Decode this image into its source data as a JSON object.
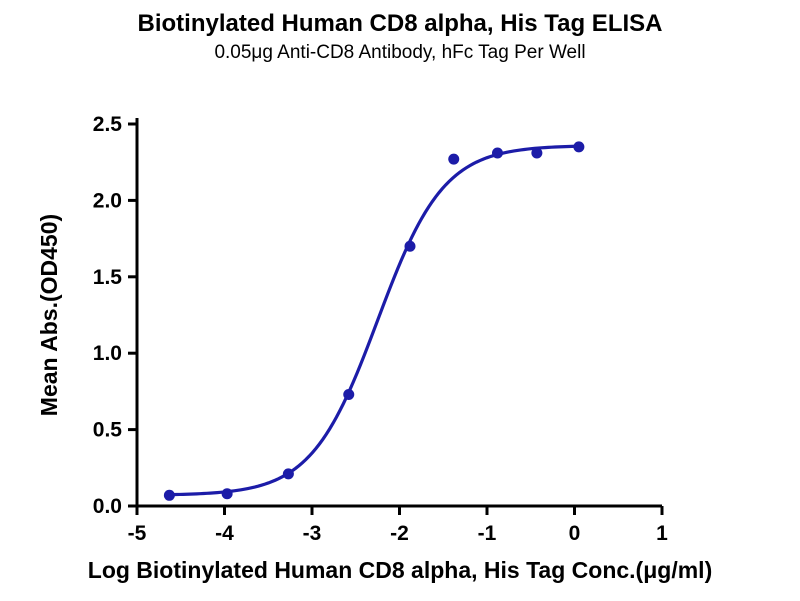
{
  "header": {
    "title": "Biotinylated Human CD8 alpha, His Tag ELISA",
    "subtitle": "0.05μg Anti-CD8 Antibody, hFc Tag Per Well"
  },
  "chart_data": {
    "type": "scatter",
    "title": "Biotinylated Human CD8 alpha, His Tag ELISA",
    "subtitle": "0.05μg Anti-CD8 Antibody, hFc Tag Per Well",
    "xlabel": "Log Biotinylated Human CD8 alpha, His Tag Conc.(μg/ml)",
    "ylabel": "Mean Abs.(OD450)",
    "xlim": [
      -5,
      1
    ],
    "ylim": [
      0,
      2.5
    ],
    "x_ticks": [
      -5,
      -4,
      -3,
      -2,
      -1,
      0,
      1
    ],
    "x_tick_labels": [
      "-5",
      "-4",
      "-3",
      "-2",
      "-1",
      "0",
      "1"
    ],
    "y_ticks": [
      0,
      0.5,
      1.0,
      1.5,
      2.0,
      2.5
    ],
    "y_tick_labels": [
      "0.0",
      "0.5",
      "1.0",
      "1.5",
      "2.0",
      "2.5"
    ],
    "grid": false,
    "legend": "none",
    "accent_color": "#1c1ca8",
    "axis_color": "#000000",
    "series": [
      {
        "name": "Biotinylated Human CD8 alpha, His Tag",
        "type": "scatter",
        "color": "#1c1ca8",
        "marker": "circle",
        "points": [
          [
            -4.63,
            0.07
          ],
          [
            -3.97,
            0.08
          ],
          [
            -3.27,
            0.21
          ],
          [
            -2.58,
            0.73
          ],
          [
            -1.88,
            1.7
          ],
          [
            -1.38,
            2.27
          ],
          [
            -0.88,
            2.31
          ],
          [
            -0.43,
            2.31
          ],
          [
            0.05,
            2.35
          ]
        ]
      },
      {
        "name": "4PL sigmoidal fit",
        "type": "curve-4pl",
        "color": "#1c1ca8",
        "fit": {
          "bottom": 0.07,
          "top": 2.36,
          "logEC50": -2.25,
          "hillslope": 1.15
        },
        "x_range": [
          -4.63,
          0.05
        ]
      }
    ]
  }
}
